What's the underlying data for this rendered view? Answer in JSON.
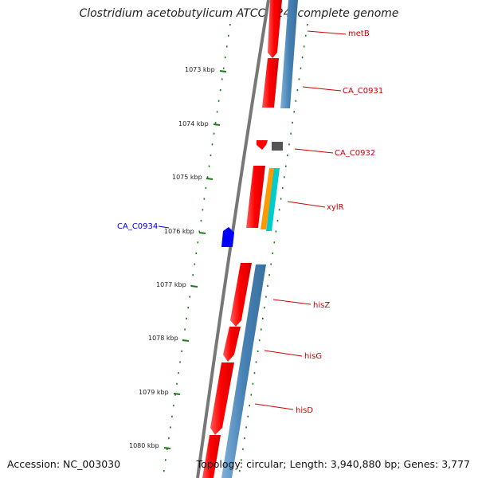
{
  "title": "Clostridium acetobutylicum ATCC 824, complete genome",
  "footer": {
    "accession": "Accession: NC_003030",
    "topology": "Topology: circular; Length: 3,940,880 bp; Genes: 3,777"
  },
  "colors": {
    "backbone": "#777777",
    "forward_cds": "#ff0000",
    "reverse_cds": "#4682b4",
    "ticks": "#1a7a1a",
    "gene_label": "#cc0000",
    "reverse_gene_label": "#0000cc",
    "gene_small": "#555555",
    "gene_blue": "#0000ff",
    "orange_feature": "#ff9900",
    "cyan_feature": "#00cccc"
  },
  "kbp_ticks": [
    "1073 kbp",
    "1074 kbp",
    "1075 kbp",
    "1076 kbp",
    "1077 kbp",
    "1078 kbp",
    "1079 kbp",
    "1080 kbp"
  ],
  "gene_labels": [
    {
      "name": "metB",
      "strand": "forward"
    },
    {
      "name": "CA_C0931",
      "strand": "forward"
    },
    {
      "name": "CA_C0932",
      "strand": "forward"
    },
    {
      "name": "xylR",
      "strand": "forward"
    },
    {
      "name": "CA_C0934",
      "strand": "reverse"
    },
    {
      "name": "hisZ",
      "strand": "forward"
    },
    {
      "name": "hisG",
      "strand": "forward"
    },
    {
      "name": "hisD",
      "strand": "forward"
    }
  ]
}
